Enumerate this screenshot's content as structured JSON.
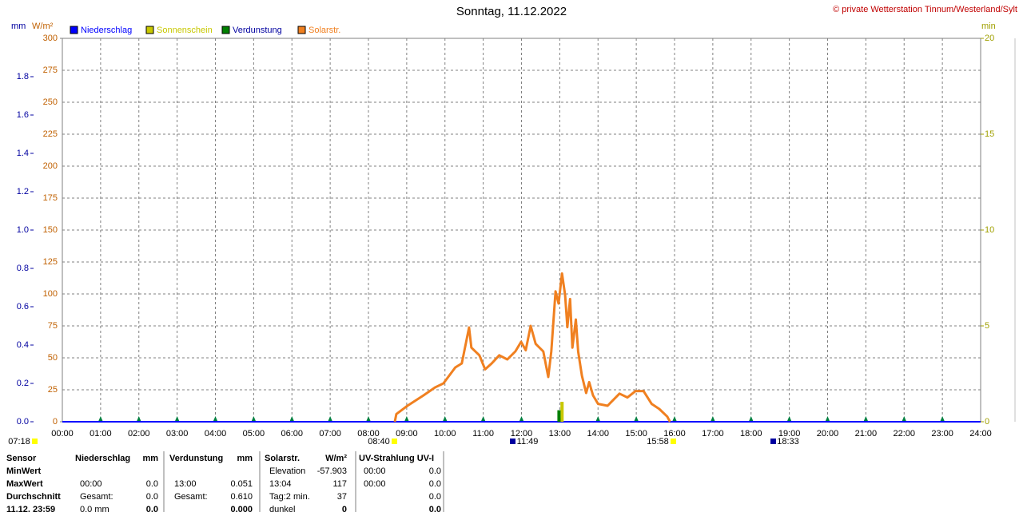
{
  "chart_data": {
    "type": "line",
    "title": "Sonntag, 11.12.2022",
    "source": "© private Wetterstation Tinnum/Westerland/Sylt",
    "mm_unit": "mm",
    "y_unit": "W/m²",
    "y2_unit": "min",
    "xlim": [
      0,
      24
    ],
    "xticks": [
      {
        "value": 0,
        "label": "00:00"
      },
      {
        "value": 1,
        "label": "01:00"
      },
      {
        "value": 2,
        "label": "02:00"
      },
      {
        "value": 3,
        "label": "03:00"
      },
      {
        "value": 4,
        "label": "04:00"
      },
      {
        "value": 5,
        "label": "05:00"
      },
      {
        "value": 6,
        "label": "06:00"
      },
      {
        "value": 7,
        "label": "07:00"
      },
      {
        "value": 8,
        "label": "08:00"
      },
      {
        "value": 9,
        "label": "09:00"
      },
      {
        "value": 10,
        "label": "10:00"
      },
      {
        "value": 11,
        "label": "11:00"
      },
      {
        "value": 12,
        "label": "12:00"
      },
      {
        "value": 13,
        "label": "13:00"
      },
      {
        "value": 14,
        "label": "14:00"
      },
      {
        "value": 15,
        "label": "15:00"
      },
      {
        "value": 16,
        "label": "16:00"
      },
      {
        "value": 17,
        "label": "17:00"
      },
      {
        "value": 18,
        "label": "18:00"
      },
      {
        "value": 19,
        "label": "19:00"
      },
      {
        "value": 20,
        "label": "20:00"
      },
      {
        "value": 21,
        "label": "21:00"
      },
      {
        "value": 22,
        "label": "22:00"
      },
      {
        "value": 23,
        "label": "23:00"
      },
      {
        "value": 24,
        "label": "24:00"
      }
    ],
    "ylim": [
      0,
      300
    ],
    "yticks": [
      0,
      25,
      50,
      75,
      100,
      125,
      150,
      175,
      200,
      225,
      250,
      275,
      300
    ],
    "mmlim": [
      0,
      2
    ],
    "mmticks": [
      {
        "value": 0,
        "label": "0.0"
      },
      {
        "value": 0.2,
        "label": "0.2"
      },
      {
        "value": 0.4,
        "label": "0.4"
      },
      {
        "value": 0.6,
        "label": "0.6"
      },
      {
        "value": 0.8,
        "label": "0.8"
      },
      {
        "value": 1.0,
        "label": "1.0"
      },
      {
        "value": 1.2,
        "label": "1.2"
      },
      {
        "value": 1.4,
        "label": "1.4"
      },
      {
        "value": 1.6,
        "label": "1.6"
      },
      {
        "value": 1.8,
        "label": "1.8"
      }
    ],
    "y2lim": [
      0,
      20
    ],
    "y2ticks": [
      0,
      5,
      10,
      15,
      20
    ],
    "grid": true,
    "series": [
      {
        "name": "Niederschlag",
        "color": "#0000ff",
        "axis": "mm",
        "kind": "line",
        "x": [
          0,
          24
        ],
        "values": [
          0,
          0
        ]
      },
      {
        "name": "Sonnenschein",
        "color": "#c8c800",
        "axis": "y2",
        "kind": "bar",
        "x": [
          13.06
        ],
        "values": [
          1.04
        ]
      },
      {
        "name": "Verdunstung",
        "color": "#008000",
        "axis": "mm",
        "kind": "bar",
        "x": [
          12.98
        ],
        "values": [
          0.06
        ]
      },
      {
        "name": "Solarstr.",
        "color": "#f08020",
        "axis": "y",
        "kind": "line",
        "x": [
          8.69,
          8.73,
          9.02,
          9.44,
          9.75,
          9.96,
          10.27,
          10.44,
          10.63,
          10.69,
          10.9,
          11.05,
          11.22,
          11.42,
          11.63,
          11.84,
          11.99,
          12.11,
          12.24,
          12.37,
          12.57,
          12.7,
          12.78,
          12.89,
          12.97,
          13.06,
          13.14,
          13.2,
          13.27,
          13.33,
          13.42,
          13.48,
          13.58,
          13.69,
          13.77,
          13.87,
          14.0,
          14.25,
          14.56,
          14.77,
          14.98,
          15.19,
          15.4,
          15.6,
          15.81,
          15.88
        ],
        "values": [
          0,
          6,
          12.5,
          20.6,
          27,
          30,
          42.5,
          45.6,
          73.75,
          58,
          52,
          41,
          45.6,
          52,
          48.75,
          55,
          62.5,
          56,
          75,
          61,
          55,
          35,
          55,
          102,
          92.5,
          116,
          99,
          74,
          96,
          58,
          80,
          55,
          36,
          22.5,
          31,
          20.6,
          14,
          12.5,
          22,
          19,
          24,
          24,
          14,
          10,
          4,
          0
        ]
      }
    ],
    "events": [
      "07:18",
      "08:40",
      "11:49",
      "15:58",
      "18:33"
    ]
  },
  "table": {
    "rows": [
      {
        "label": "Sensor",
        "niederschlag": {
          "l": "Niederschlag",
          "r": "mm"
        },
        "verdunstung": {
          "l": "Verdunstung",
          "r": "mm"
        },
        "solar": {
          "l": "Solarstr.",
          "r": "W/m²"
        },
        "uv": {
          "l": "UV-Strahlung UV-I"
        }
      },
      {
        "label": "MinWert",
        "solar": {
          "l": "Elevation",
          "r": "-57.903"
        },
        "uv": {
          "l": "00:00",
          "r": "0.0"
        }
      },
      {
        "label": "MaxWert",
        "niederschlag": {
          "l": "00:00",
          "r": "0.0"
        },
        "verdunstung": {
          "l": "13:00",
          "r": "0.051"
        },
        "solar": {
          "l": "13:04",
          "r": "117"
        },
        "uv": {
          "l": "00:00",
          "r": "0.0"
        }
      },
      {
        "label": "Durchschnitt",
        "niederschlag": {
          "l": "Gesamt:",
          "r": "0.0"
        },
        "verdunstung": {
          "l": "Gesamt:",
          "r": "0.610"
        },
        "solar": {
          "l": "Tag:2 min.",
          "r": "37"
        },
        "uv": {
          "r": "0.0"
        }
      },
      {
        "label": "11.12. 23:59",
        "niederschlag": {
          "l": "0.0 mm",
          "r": "0.0"
        },
        "verdunstung": {
          "r": "0.000"
        },
        "solar": {
          "l": "dunkel",
          "r": "0"
        },
        "uv": {
          "r": "0.0"
        }
      }
    ]
  }
}
